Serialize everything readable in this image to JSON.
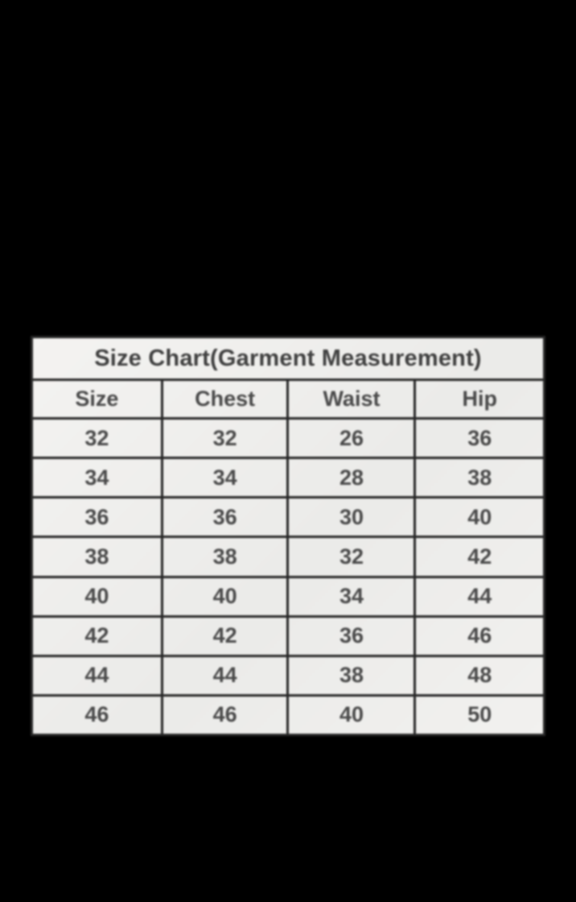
{
  "page": {
    "background_color": "#000000"
  },
  "table": {
    "title": "Size Chart(Garment Measurement)",
    "columns": [
      "Size",
      "Chest",
      "Waist",
      "Hip"
    ],
    "rows": [
      [
        "32",
        "32",
        "26",
        "36"
      ],
      [
        "34",
        "34",
        "28",
        "38"
      ],
      [
        "36",
        "36",
        "30",
        "40"
      ],
      [
        "38",
        "38",
        "32",
        "42"
      ],
      [
        "40",
        "40",
        "34",
        "44"
      ],
      [
        "42",
        "42",
        "36",
        "46"
      ],
      [
        "44",
        "44",
        "38",
        "48"
      ],
      [
        "46",
        "46",
        "40",
        "50"
      ]
    ],
    "colors": {
      "cell_background": "#f0efed",
      "border": "#272727",
      "text": "#4a4a4a"
    }
  },
  "chart_data": {
    "type": "table",
    "title": "Size Chart(Garment Measurement)",
    "columns": [
      "Size",
      "Chest",
      "Waist",
      "Hip"
    ],
    "rows": [
      [
        32,
        32,
        26,
        36
      ],
      [
        34,
        34,
        28,
        38
      ],
      [
        36,
        36,
        30,
        40
      ],
      [
        38,
        38,
        32,
        42
      ],
      [
        40,
        40,
        34,
        44
      ],
      [
        42,
        42,
        36,
        46
      ],
      [
        44,
        44,
        38,
        48
      ],
      [
        46,
        46,
        40,
        50
      ]
    ],
    "layout": {
      "grid": true,
      "title_row_spans_all_columns": true,
      "background": "black"
    }
  }
}
